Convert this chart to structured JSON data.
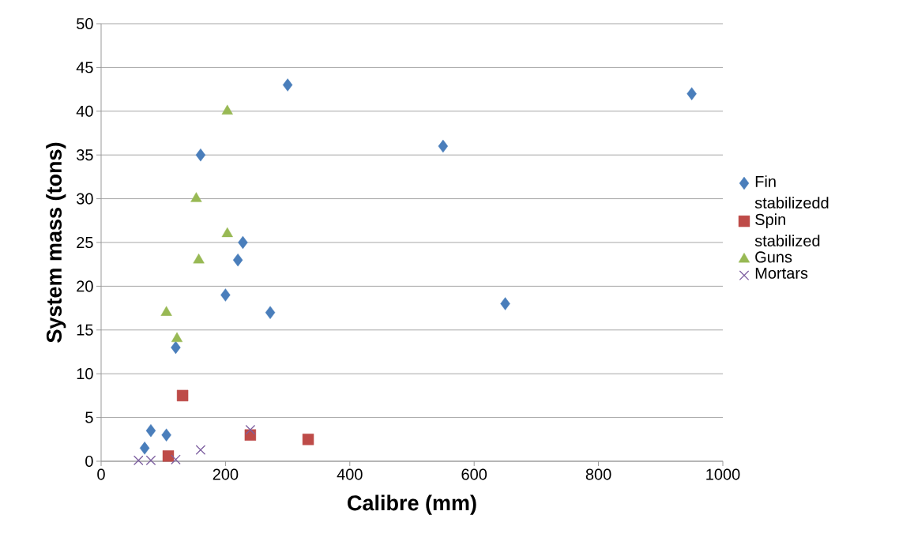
{
  "chart_data": {
    "type": "scatter",
    "xlabel": "Calibre (mm)",
    "ylabel": "System mass (tons)",
    "xlim": [
      0,
      1000
    ],
    "ylim": [
      0,
      50
    ],
    "xticks": [
      0,
      200,
      400,
      600,
      800,
      1000
    ],
    "yticks": [
      0,
      5,
      10,
      15,
      20,
      25,
      30,
      35,
      40,
      45,
      50
    ],
    "grid": "y",
    "legend": "right",
    "series": [
      {
        "name": "Fin stabilizedd",
        "color": "#4a7ebb",
        "marker": "diamond",
        "x": [
          70,
          80,
          105,
          120,
          160,
          200,
          220,
          228,
          272,
          300,
          550,
          650,
          950
        ],
        "values": [
          1.5,
          3.5,
          3,
          13,
          35,
          19,
          23,
          25,
          17,
          43,
          36,
          18,
          42
        ]
      },
      {
        "name": "Spin stabilized",
        "color": "#be4b48",
        "marker": "square",
        "x": [
          108,
          131,
          240,
          333
        ],
        "values": [
          0.6,
          7.5,
          3,
          2.5
        ]
      },
      {
        "name": "Guns",
        "color": "#98b954",
        "marker": "triangle",
        "x": [
          105,
          122,
          157,
          153,
          203,
          203
        ],
        "values": [
          17,
          14,
          23,
          30,
          26,
          40
        ]
      },
      {
        "name": "Mortars",
        "color": "#7d5fa0",
        "marker": "cross",
        "x": [
          60,
          80,
          120,
          160,
          240
        ],
        "values": [
          0.1,
          0.1,
          0.2,
          1.3,
          3.6
        ]
      }
    ]
  }
}
